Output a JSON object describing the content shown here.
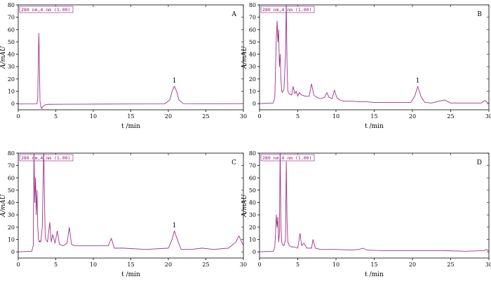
{
  "chart_data": [
    {
      "type": "line",
      "panel": "A",
      "legend": "280 nm,4 nm (1.00)",
      "xlabel": "t /min",
      "ylabel": "A/mAU",
      "xlim": [
        0,
        30
      ],
      "ylim": [
        -5,
        80
      ],
      "xticks": [
        "0",
        "5",
        "10",
        "15",
        "20",
        "25",
        "30"
      ],
      "yticks": [
        "0",
        "10",
        "20",
        "30",
        "40",
        "50",
        "60",
        "70",
        "80"
      ],
      "annotations": [
        {
          "text": "1",
          "x": 20.8,
          "y": 17
        }
      ],
      "color": "#a0308a",
      "series": [
        {
          "x": [
            0,
            2.5,
            2.6,
            2.7,
            2.75,
            2.8,
            2.9,
            3.0,
            3.1,
            3.3,
            3.6,
            4.0,
            6,
            10,
            15,
            19.5,
            20.2,
            20.5,
            20.8,
            21.1,
            21.4,
            22.0,
            25,
            30
          ],
          "y": [
            -0.3,
            -0.2,
            5,
            45,
            57,
            40,
            2,
            -2,
            -4,
            -2,
            -1,
            -0.6,
            -0.5,
            -0.4,
            -0.3,
            -0.2,
            3,
            10,
            14,
            10,
            3,
            0,
            -0.1,
            0
          ]
        }
      ]
    },
    {
      "type": "line",
      "panel": "B",
      "legend": "280 nm,4 nm (1.00)",
      "xlabel": "t /min",
      "ylabel": "A/mAU",
      "xlim": [
        0,
        30
      ],
      "ylim": [
        -5,
        80
      ],
      "xticks": [
        "0",
        "5",
        "10",
        "15",
        "20",
        "25",
        "30"
      ],
      "yticks": [
        "0",
        "10",
        "20",
        "30",
        "40",
        "50",
        "60",
        "70",
        "80"
      ],
      "annotations": [
        {
          "text": "1",
          "x": 20.7,
          "y": 17
        }
      ],
      "color": "#a0308a",
      "series": [
        {
          "x": [
            0,
            1.8,
            2.0,
            2.2,
            2.3,
            2.4,
            2.5,
            2.6,
            2.7,
            2.8,
            2.9,
            3.0,
            3.2,
            3.4,
            3.5,
            3.6,
            3.7,
            3.9,
            4.2,
            4.4,
            4.6,
            4.8,
            5.0,
            5.2,
            5.5,
            6.0,
            6.5,
            6.8,
            7.1,
            7.5,
            8.0,
            8.5,
            8.8,
            9.1,
            9.5,
            9.8,
            10.1,
            10.5,
            11,
            12,
            13,
            14,
            15,
            17,
            19.8,
            20.3,
            20.7,
            21.1,
            21.6,
            22.5,
            24.2,
            25,
            27,
            29,
            29.5,
            30
          ],
          "y": [
            0,
            0.5,
            5,
            55,
            67,
            50,
            60,
            30,
            40,
            20,
            10,
            9,
            12,
            40,
            84,
            30,
            10,
            8,
            7,
            14,
            8,
            10,
            6,
            9,
            7,
            6,
            6,
            16,
            7,
            5,
            4,
            5,
            9,
            5,
            4,
            11,
            5,
            3,
            2,
            2,
            1.5,
            1.5,
            1,
            1,
            1,
            6,
            14,
            6,
            1,
            0.5,
            3,
            0.5,
            0.5,
            0.5,
            2.5,
            0
          ]
        }
      ]
    },
    {
      "type": "line",
      "panel": "C",
      "legend": "280 nm,4 nm (1.00)",
      "xlabel": "t /min",
      "ylabel": "A/mAU",
      "xlim": [
        0,
        30
      ],
      "ylim": [
        -5,
        80
      ],
      "xticks": [
        "0",
        "5",
        "10",
        "15",
        "20",
        "25",
        "30"
      ],
      "yticks": [
        "0",
        "10",
        "20",
        "30",
        "40",
        "50",
        "60",
        "70",
        "80"
      ],
      "annotations": [
        {
          "text": "1",
          "x": 20.8,
          "y": 20
        }
      ],
      "color": "#a0308a",
      "series": [
        {
          "x": [
            0,
            1.8,
            2.0,
            2.1,
            2.2,
            2.3,
            2.4,
            2.5,
            2.6,
            2.7,
            2.8,
            2.9,
            3.0,
            3.2,
            3.4,
            3.5,
            3.6,
            3.7,
            3.9,
            4.2,
            4.4,
            4.6,
            4.9,
            5.2,
            5.5,
            6.0,
            6.5,
            6.8,
            7.1,
            7.5,
            9,
            11,
            12.0,
            12.4,
            12.8,
            14,
            17,
            20.0,
            20.5,
            20.8,
            21.2,
            21.7,
            23,
            24.5,
            26,
            28,
            29.0,
            29.4,
            29.7,
            30
          ],
          "y": [
            0,
            0.5,
            5,
            84,
            40,
            60,
            30,
            50,
            20,
            10,
            8,
            9,
            8,
            20,
            84,
            40,
            12,
            10,
            8,
            24,
            8,
            14,
            7,
            17,
            6,
            5,
            7,
            20,
            6,
            5,
            5,
            5,
            5,
            11,
            3,
            3,
            2,
            3,
            10,
            17,
            10,
            2,
            2,
            3,
            2,
            3,
            8,
            13,
            9,
            5
          ]
        }
      ]
    },
    {
      "type": "line",
      "panel": "D",
      "legend": "280 nm,4 nm (1.00)",
      "xlabel": "t /min",
      "ylabel": "A/mAU",
      "xlim": [
        0,
        30
      ],
      "ylim": [
        -5,
        80
      ],
      "xticks": [
        "0",
        "5",
        "10",
        "15",
        "20",
        "25",
        "30"
      ],
      "yticks": [
        "0",
        "10",
        "20",
        "30",
        "40",
        "50",
        "60",
        "70",
        "80"
      ],
      "annotations": [],
      "color": "#a0308a",
      "series": [
        {
          "x": [
            0,
            1.8,
            2.0,
            2.2,
            2.3,
            2.4,
            2.5,
            2.6,
            2.7,
            2.8,
            2.9,
            3.0,
            3.2,
            3.4,
            3.5,
            3.6,
            3.7,
            3.9,
            4.2,
            4.5,
            5.0,
            5.3,
            5.5,
            5.8,
            6.2,
            6.8,
            7.0,
            7.3,
            8,
            9,
            10,
            12,
            13,
            13.5,
            14,
            16,
            20,
            24,
            27,
            29.3,
            29.7,
            30
          ],
          "y": [
            0,
            0.5,
            4,
            30,
            20,
            28,
            8,
            15,
            84,
            20,
            8,
            6,
            5,
            10,
            73,
            25,
            8,
            5,
            4,
            4,
            3,
            15,
            5,
            7,
            3,
            3,
            10,
            3,
            2,
            2,
            2,
            1.5,
            2,
            3,
            1.5,
            1,
            1,
            1,
            0.5,
            1,
            2,
            0.5
          ]
        }
      ]
    }
  ]
}
